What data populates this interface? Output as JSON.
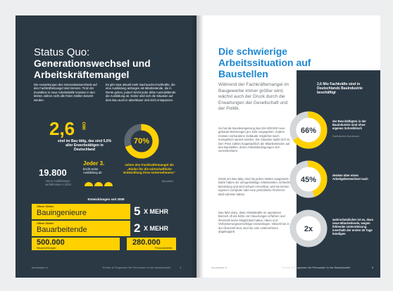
{
  "left_page": {
    "title_light": "Status Quo:",
    "title_bold": "Generationswechsel und Arbeitskräftemangel",
    "paragraphs": [
      "Die Auswirkungen des Generationswechsels auf den Fachkräftemangel sind immens. Trotz der Investition in neue Arbeitskräfte konnten in den letzten Jahren nicht alle freien Stellen besetzt werden.",
      "Es gibt zwar aktuell mehr Nachwuchs-Fachkräfte, die eine Ausbildung anfangen als Mitarbeitende, die in Rente gehen, jedoch bricht jeder dritte Auszubildende die Ausbildung ab. Daher wird sich die Situation auf dem Bau auch in absehbarer Zeit nicht entspannen."
    ],
    "stat_workers": {
      "number": "2,6",
      "unit": "MIO",
      "text": "sind im Bau tätig, das sind 5,6% aller Erwerbstätigen in Deutschland"
    },
    "stat_risk": {
      "percent": {
        "value": 70,
        "label": "70%"
      },
      "text": "sehen den Fachkräftemangel als „Risiko für die wirtschaftliche Entwicklung ihres Unternehmens“",
      "source": "Baustellen"
    },
    "stat_apprentices": {
      "number": "19.800",
      "text": "Neue Ausbildungs-verhältnisse in 2022"
    },
    "stat_dropout": {
      "number": "Jeder 3.",
      "text": "bricht seine Ausbildung ab"
    },
    "developments": {
      "title": "Entwicklungen seit 2009",
      "rows": [
        {
          "label": "Offene Stellen",
          "name": "Bauingenieure",
          "factor": "5",
          "suffix": "X MEHR"
        },
        {
          "label": "Offene Stellen",
          "name": "Bauarbeitende",
          "factor": "2",
          "suffix": "X MEHR"
        }
      ],
      "totals": [
        {
          "number": "500.000",
          "label": "Neuanmeldungen"
        },
        {
          "number": "280.000",
          "label": "Personalmärkte"
        }
      ]
    },
    "footer": {
      "brand": "baukasper.io",
      "text": "Trends & Prognosen für Personaler in der Bauindustrie",
      "page": "4"
    }
  },
  "right_page": {
    "title": "Die schwierige Arbeitssituation auf Baustellen",
    "intro": "Während der Fachkräftemangel im Baugewerbe immer größer wird, wächst auch der Druck durch die Erwartungen der Gesellschaft und der Politik.",
    "paragraphs": [
      "So hat die Bundesregierung das Ziel 400.000 neue gebaute Wohnungen pro Jahr vorgegeben. Zudem müssen vorhandene Gebäude möglichst rasch energetisch saniert werden. Die Situation spitzt sich zu. Den Preis zahlen hauptsächlich die Mitarbeitenden auf den Baustellen, deren Arbeitsbedingungen sich verschlechtern.",
      "Direkt am Bau tätig, sind sie jedem Wetter ausgesetzt. Dafür haben sie unregelmäßige Arbeitszeiten, schlechte Bezahlung und sind schwer erreichbar, weil sie keinen eigenen Computer oder eine persönliche Firmen-E-Mail-Adresse haben.",
      "Das führt dazu, dass Arbeitskräfte im operativen Bereich oft als letzte von Neuerungen erfahren und ihrerseits keine Möglichkeit haben, Ideen und Verbesserungsvorschläge einzubringen. Obwohl sie in der Überzahl sind, sind sie vom Unternehmen abgekoppelt."
    ],
    "sidebar": {
      "heading": "2,6 Mio Fachkräfte sind in Deutschlands Bauindustrie beschäftigt",
      "stats": [
        {
          "percent": {
            "value": 66,
            "label": "66%"
          },
          "text": "der Beschäftigten in der Bauindustrie sind ohne eigenes Schreibtisch",
          "source": "Statistisches Bundesamt"
        },
        {
          "percent": {
            "value": 45,
            "label": "45%"
          },
          "text": "denken über einen Arbeitgeberwechsel nach"
        },
        {
          "percent": {
            "label": "2x"
          },
          "text": "wahrscheinlicher ist es, dass neue Mitarbeitende, wegen fehlender Unterstützung innerhalb der ersten 30 Tage kündigen"
        }
      ]
    },
    "footer": {
      "brand": "baukasper.io",
      "text": "Trends & Prognosen für Personaler in der Bauindustrie",
      "page": "5"
    }
  }
}
